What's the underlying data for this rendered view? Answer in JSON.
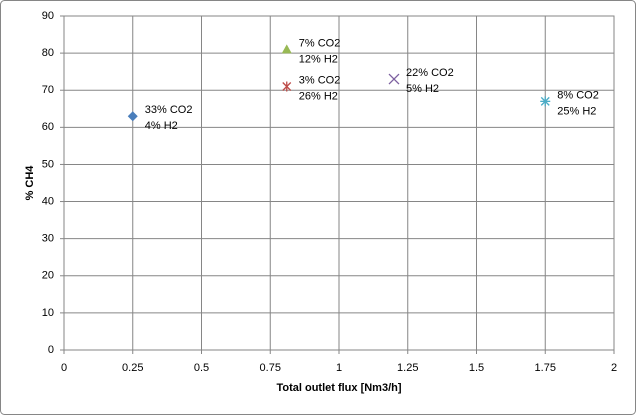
{
  "chart_data": {
    "type": "scatter",
    "xlabel": "Total outlet flux [Nm3/h]",
    "ylabel": "% CH4",
    "xlim": [
      0,
      2
    ],
    "ylim": [
      0,
      90
    ],
    "xticks": [
      0,
      0.25,
      0.5,
      0.75,
      1,
      1.25,
      1.5,
      1.75,
      2
    ],
    "yticks": [
      0,
      10,
      20,
      30,
      40,
      50,
      60,
      70,
      80,
      90
    ],
    "grid": true,
    "series": [
      {
        "marker": "diamond",
        "color": "#4a7ebb",
        "x": [
          0.25
        ],
        "values": [
          63
        ],
        "annotation": [
          "33% CO2",
          "4% H2"
        ]
      },
      {
        "marker": "triangle",
        "color": "#98b954",
        "x": [
          0.81
        ],
        "values": [
          81
        ],
        "annotation": [
          "7% CO2",
          "12% H2"
        ]
      },
      {
        "marker": "asterisk",
        "color": "#be4b48",
        "x": [
          0.81
        ],
        "values": [
          71
        ],
        "annotation": [
          "3% CO2",
          "26% H2"
        ]
      },
      {
        "marker": "x",
        "color": "#7d60a0",
        "x": [
          1.2
        ],
        "values": [
          73
        ],
        "annotation": [
          "22% CO2",
          "5% H2"
        ]
      },
      {
        "marker": "star",
        "color": "#4bacc6",
        "x": [
          1.75
        ],
        "values": [
          67
        ],
        "annotation": [
          "8% CO2",
          "25% H2"
        ]
      }
    ]
  }
}
